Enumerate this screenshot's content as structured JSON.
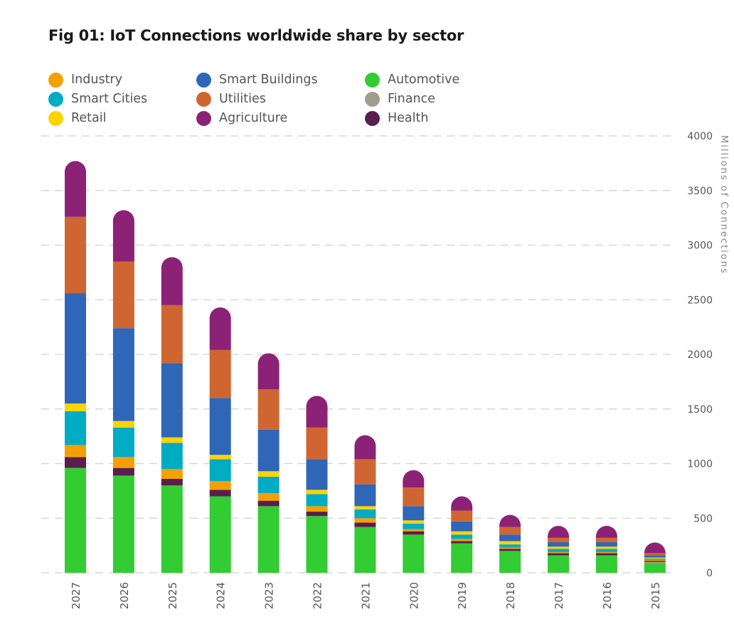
{
  "chart_data": {
    "type": "bar",
    "stacked": true,
    "title": "Fig 01: IoT Connections worldwide share by sector",
    "ylabel": "Millions of Connections",
    "xlabel": "",
    "ylim": [
      0,
      4000
    ],
    "yticks": [
      0,
      500,
      1000,
      1500,
      2000,
      2500,
      3000,
      3500,
      4000
    ],
    "y_axis_side": "right",
    "grid": true,
    "legend_position": "top-left",
    "categories": [
      "2027",
      "2026",
      "2025",
      "2024",
      "2023",
      "2022",
      "2021",
      "2020",
      "2019",
      "2018",
      "2017",
      "2016",
      "2015"
    ],
    "series": [
      {
        "name": "Automotive",
        "color": "#33cc33",
        "values": [
          960,
          890,
          800,
          700,
          610,
          520,
          420,
          350,
          270,
          200,
          160,
          160,
          90
        ]
      },
      {
        "name": "Finance",
        "color": "#9e9e8e",
        "values": [
          0,
          0,
          0,
          0,
          0,
          0,
          0,
          0,
          0,
          0,
          0,
          0,
          10
        ]
      },
      {
        "name": "Health",
        "color": "#5a1e4e",
        "values": [
          100,
          70,
          60,
          60,
          50,
          40,
          40,
          30,
          20,
          20,
          20,
          20,
          10
        ]
      },
      {
        "name": "Industry",
        "color": "#f5a000",
        "values": [
          110,
          100,
          90,
          80,
          70,
          50,
          40,
          20,
          20,
          10,
          10,
          10,
          10
        ]
      },
      {
        "name": "Smart Cities",
        "color": "#00abc4",
        "values": [
          310,
          270,
          240,
          200,
          150,
          110,
          80,
          50,
          40,
          30,
          30,
          30,
          10
        ]
      },
      {
        "name": "Retail",
        "color": "#ffd400",
        "values": [
          70,
          60,
          50,
          40,
          50,
          40,
          30,
          30,
          30,
          30,
          20,
          20,
          10
        ]
      },
      {
        "name": "Smart Buildings",
        "color": "#3066b8",
        "values": [
          1010,
          850,
          680,
          520,
          380,
          280,
          200,
          130,
          90,
          60,
          40,
          40,
          20
        ]
      },
      {
        "name": "Utilities",
        "color": "#cf6631",
        "values": [
          700,
          610,
          530,
          440,
          370,
          290,
          230,
          170,
          100,
          70,
          40,
          40,
          20
        ]
      },
      {
        "name": "Agriculture",
        "color": "#8c2276",
        "values": [
          510,
          470,
          440,
          390,
          330,
          290,
          220,
          160,
          130,
          110,
          110,
          110,
          80
        ]
      }
    ]
  },
  "legend": [
    {
      "name": "Industry",
      "color": "#f5a000"
    },
    {
      "name": "Smart Buildings",
      "color": "#3066b8"
    },
    {
      "name": "Automotive",
      "color": "#33cc33"
    },
    {
      "name": "Smart Cities",
      "color": "#00abc4"
    },
    {
      "name": "Utilities",
      "color": "#cf6631"
    },
    {
      "name": "Finance",
      "color": "#9e9e8e"
    },
    {
      "name": "Retail",
      "color": "#ffd400"
    },
    {
      "name": "Agriculture",
      "color": "#8c2276"
    },
    {
      "name": "Health",
      "color": "#5a1e4e"
    }
  ]
}
